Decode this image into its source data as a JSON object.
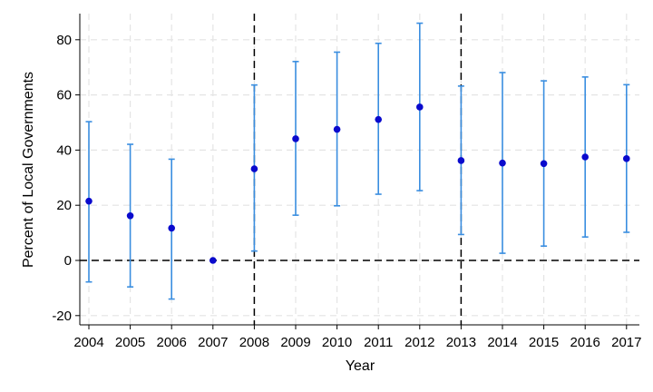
{
  "chart_data": {
    "type": "scatter",
    "title": "",
    "xlabel": "Year",
    "ylabel": "Percent of Local Governments",
    "x": [
      2004,
      2005,
      2006,
      2007,
      2008,
      2009,
      2010,
      2011,
      2012,
      2013,
      2014,
      2015,
      2016,
      2017
    ],
    "x_tick_labels": [
      "2004",
      "2005",
      "2006",
      "2007",
      "2008",
      "2009",
      "2010",
      "2011",
      "2012",
      "2013",
      "2014",
      "2015",
      "2016",
      "2017"
    ],
    "y": [
      21.5,
      16.2,
      11.7,
      0,
      33.2,
      44.1,
      47.5,
      51.1,
      55.6,
      36.2,
      35.3,
      35.1,
      37.5,
      36.9
    ],
    "ci_low": [
      -7.8,
      -9.6,
      -14.0,
      0,
      3.4,
      16.4,
      19.8,
      24.0,
      25.3,
      9.4,
      2.6,
      5.2,
      8.5,
      10.2
    ],
    "ci_high": [
      50.3,
      42.1,
      36.7,
      0,
      63.6,
      72.1,
      75.5,
      78.7,
      86.0,
      63.2,
      68.1,
      65.1,
      66.5,
      63.7
    ],
    "ylim": [
      -23,
      90
    ],
    "y_ticks": [
      -20,
      0,
      20,
      40,
      60,
      80
    ],
    "y_tick_labels": [
      "-20",
      "0",
      "20",
      "40",
      "60",
      "80"
    ],
    "reference_lines": {
      "horizontal_y": 0,
      "vertical_x": [
        2008,
        2013
      ]
    },
    "grid": true,
    "colors": {
      "point": "#0a0acd",
      "errorbar": "#3a8ee0",
      "reference": "#000000",
      "grid": "#e4e4e4"
    }
  }
}
